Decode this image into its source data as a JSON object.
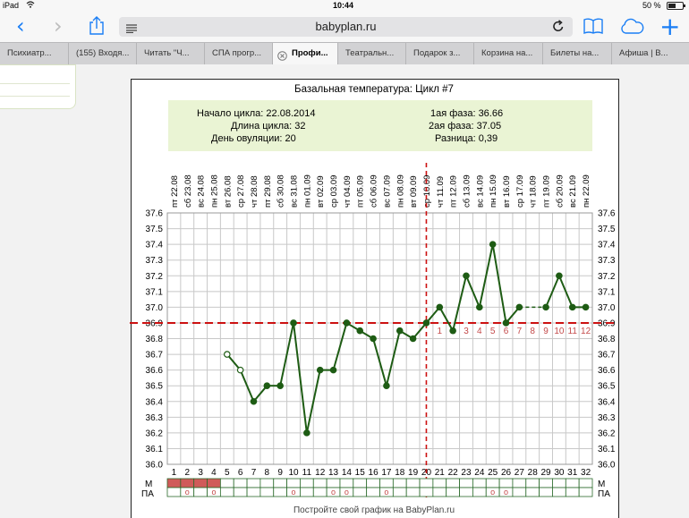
{
  "status": {
    "device": "iPad",
    "wifi_icon": "wifi-icon",
    "time": "10:44",
    "battery": "50 %",
    "battery_icon": "battery-icon"
  },
  "toolbar": {
    "url": "babyplan.ru",
    "icons": [
      "back-icon",
      "forward-icon",
      "share-icon",
      "reader-icon",
      "reload-icon",
      "bookmarks-icon",
      "cloud-tabs-icon",
      "new-tab-icon"
    ]
  },
  "tabs": [
    {
      "label": "Психиатр..."
    },
    {
      "label": "(155) Входя..."
    },
    {
      "label": "Читать \"Ч..."
    },
    {
      "label": "СПА прогр..."
    },
    {
      "label": "Профи...",
      "active": true
    },
    {
      "label": "Театральн..."
    },
    {
      "label": "Подарок з..."
    },
    {
      "label": "Корзина на..."
    },
    {
      "label": "Билеты на..."
    },
    {
      "label": "Афиша | В..."
    }
  ],
  "page": {
    "title": "Базальная температура: Цикл #7",
    "info_left": [
      "Начало цикла: 22.08.2014",
      "Длина цикла: 32",
      "День овуляции: 20"
    ],
    "info_right": [
      "1ая фаза: 36.66",
      "2ая фаза: 37.05",
      "Разница: 0,39"
    ],
    "footer": "Постройте свой график на BabyPlan.ru"
  },
  "chart_data": {
    "type": "line",
    "dates": [
      "пт 22.08",
      "сб 23.08",
      "вс 24.08",
      "пн 25.08",
      "вт 26.08",
      "ср 27.08",
      "чт 28.08",
      "пт 29.08",
      "сб 30.08",
      "вс 31.08",
      "пн 01.09",
      "вт 02.09",
      "ср 03.09",
      "чт 04.09",
      "пт 05.09",
      "сб 06.09",
      "вс 07.09",
      "пн 08.09",
      "вт 09.09",
      "ср 10.09",
      "чт 11.09",
      "пт 12.09",
      "сб 13.09",
      "вс 14.09",
      "пн 15.09",
      "вт 16.09",
      "ср 17.09",
      "чт 18.09",
      "пт 19.09",
      "сб 20.09",
      "вс 21.09",
      "пн 22.09"
    ],
    "days": [
      1,
      2,
      3,
      4,
      5,
      6,
      7,
      8,
      9,
      10,
      11,
      12,
      13,
      14,
      15,
      16,
      17,
      18,
      19,
      20,
      21,
      22,
      23,
      24,
      25,
      26,
      27,
      28,
      29,
      30,
      31,
      32
    ],
    "values": [
      null,
      null,
      null,
      null,
      36.7,
      36.6,
      36.4,
      36.5,
      36.5,
      36.9,
      36.2,
      36.6,
      36.6,
      36.9,
      36.85,
      36.8,
      36.5,
      36.85,
      36.8,
      36.9,
      37.0,
      36.85,
      37.2,
      37.0,
      37.4,
      36.9,
      37.0,
      null,
      37.0,
      37.2,
      37.0,
      37.0
    ],
    "open_points": [
      5,
      6
    ],
    "dashed_segment_days": [
      27,
      29
    ],
    "ylim": [
      36.0,
      37.6
    ],
    "yticks": [
      "36.0",
      "36.1",
      "36.2",
      "36.3",
      "36.4",
      "36.5",
      "36.6",
      "36.7",
      "36.8",
      "36.9",
      "37.0",
      "37.1",
      "37.2",
      "37.3",
      "37.4",
      "37.5",
      "37.6"
    ],
    "coverline": 36.9,
    "ovulation_day": 20,
    "post_ovulation_labels": [
      "1",
      "2",
      "3",
      "4",
      "5",
      "6",
      "7",
      "8",
      "9",
      "10",
      "11",
      "12"
    ],
    "menstruation_days": [
      1,
      2,
      3,
      4
    ],
    "pa_days": [
      2,
      4,
      10,
      13,
      14,
      17,
      25,
      26
    ],
    "row_labels": {
      "m": "М",
      "pa": "ПА"
    },
    "pa_marker": "o",
    "colors": {
      "line": "#1e5c14",
      "marker": "#1e5c14",
      "coverline": "#cc1111",
      "menstruation": "#d05a5a",
      "post_label": "#c44a4a",
      "grid": "#c8c8c8"
    }
  }
}
